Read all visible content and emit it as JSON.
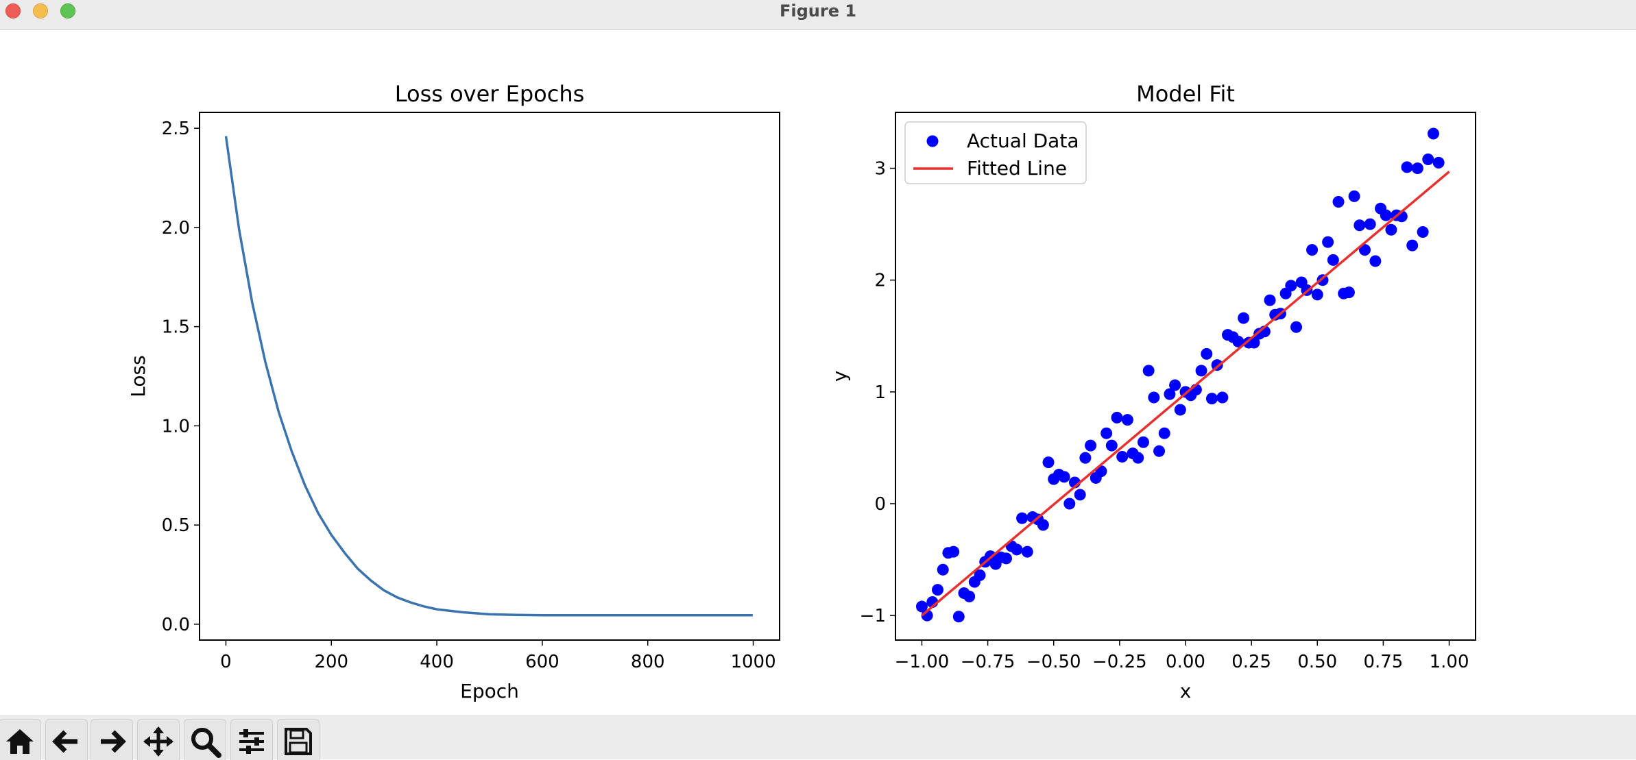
{
  "window": {
    "title": "Figure 1",
    "colors": {
      "close": "#ee5c56",
      "minimize": "#f4bd4f",
      "maximize": "#5fc454"
    }
  },
  "toolbar": {
    "buttons": [
      {
        "name": "home-button",
        "icon": "home-icon"
      },
      {
        "name": "back-button",
        "icon": "arrow-left-icon"
      },
      {
        "name": "forward-button",
        "icon": "arrow-right-icon"
      },
      {
        "name": "pan-button",
        "icon": "move-icon"
      },
      {
        "name": "zoom-button",
        "icon": "magnifier-icon"
      },
      {
        "name": "configure-subplots-button",
        "icon": "sliders-icon"
      },
      {
        "name": "save-button",
        "icon": "floppy-disk-icon"
      }
    ]
  },
  "chart_data": [
    {
      "type": "line",
      "title": "Loss over Epochs",
      "xlabel": "Epoch",
      "ylabel": "Loss",
      "xlim": [
        -50,
        1050
      ],
      "ylim": [
        -0.08,
        2.58
      ],
      "xticks": [
        0,
        200,
        400,
        600,
        800,
        1000
      ],
      "xticklabels": [
        "0",
        "200",
        "400",
        "600",
        "800",
        "1000"
      ],
      "yticks": [
        0.0,
        0.5,
        1.0,
        1.5,
        2.0,
        2.5
      ],
      "yticklabels": [
        "0.0",
        "0.5",
        "1.0",
        "1.5",
        "2.0",
        "2.5"
      ],
      "grid": false,
      "series": [
        {
          "color": "#3b73ae",
          "x": [
            0,
            25,
            50,
            75,
            100,
            125,
            150,
            175,
            200,
            225,
            250,
            275,
            300,
            325,
            350,
            375,
            400,
            450,
            500,
            550,
            600,
            700,
            800,
            900,
            999
          ],
          "y": [
            2.46,
            1.99,
            1.62,
            1.32,
            1.07,
            0.87,
            0.7,
            0.56,
            0.45,
            0.36,
            0.28,
            0.22,
            0.17,
            0.135,
            0.11,
            0.09,
            0.075,
            0.06,
            0.05,
            0.047,
            0.045,
            0.045,
            0.045,
            0.045,
            0.045
          ]
        }
      ]
    },
    {
      "type": "scatter",
      "title": "Model Fit",
      "xlabel": "x",
      "ylabel": "y",
      "xlim": [
        -1.1,
        1.1
      ],
      "ylim": [
        -1.22,
        3.5
      ],
      "xticks": [
        -1.0,
        -0.75,
        -0.5,
        -0.25,
        0.0,
        0.25,
        0.5,
        0.75,
        1.0
      ],
      "xticklabels": [
        "−1.00",
        "−0.75",
        "−0.50",
        "−0.25",
        "0.00",
        "0.25",
        "0.50",
        "0.75",
        "1.00"
      ],
      "yticks": [
        -1,
        0,
        1,
        2,
        3
      ],
      "yticklabels": [
        "−1",
        "0",
        "1",
        "2",
        "3"
      ],
      "grid": false,
      "legend": {
        "position": "top-left",
        "entries": [
          "Actual Data",
          "Fitted Line"
        ]
      },
      "series": [
        {
          "name": "Actual Data",
          "type": "scatter",
          "color": "#0000ff",
          "points": [
            [
              -1.0,
              -0.92
            ],
            [
              -0.98,
              -1.0
            ],
            [
              -0.96,
              -0.88
            ],
            [
              -0.94,
              -0.77
            ],
            [
              -0.92,
              -0.59
            ],
            [
              -0.9,
              -0.44
            ],
            [
              -0.88,
              -0.43
            ],
            [
              -0.86,
              -1.01
            ],
            [
              -0.84,
              -0.8
            ],
            [
              -0.82,
              -0.83
            ],
            [
              -0.8,
              -0.7
            ],
            [
              -0.78,
              -0.64
            ],
            [
              -0.76,
              -0.52
            ],
            [
              -0.74,
              -0.47
            ],
            [
              -0.72,
              -0.54
            ],
            [
              -0.7,
              -0.48
            ],
            [
              -0.68,
              -0.49
            ],
            [
              -0.66,
              -0.38
            ],
            [
              -0.64,
              -0.41
            ],
            [
              -0.62,
              -0.13
            ],
            [
              -0.6,
              -0.43
            ],
            [
              -0.58,
              -0.12
            ],
            [
              -0.56,
              -0.14
            ],
            [
              -0.54,
              -0.19
            ],
            [
              -0.52,
              0.37
            ],
            [
              -0.5,
              0.22
            ],
            [
              -0.48,
              0.26
            ],
            [
              -0.46,
              0.24
            ],
            [
              -0.44,
              0.0
            ],
            [
              -0.42,
              0.19
            ],
            [
              -0.4,
              0.08
            ],
            [
              -0.38,
              0.41
            ],
            [
              -0.36,
              0.52
            ],
            [
              -0.34,
              0.23
            ],
            [
              -0.32,
              0.29
            ],
            [
              -0.3,
              0.63
            ],
            [
              -0.28,
              0.52
            ],
            [
              -0.26,
              0.77
            ],
            [
              -0.24,
              0.42
            ],
            [
              -0.22,
              0.75
            ],
            [
              -0.2,
              0.45
            ],
            [
              -0.18,
              0.41
            ],
            [
              -0.16,
              0.55
            ],
            [
              -0.14,
              1.19
            ],
            [
              -0.12,
              0.95
            ],
            [
              -0.1,
              0.47
            ],
            [
              -0.08,
              0.63
            ],
            [
              -0.06,
              0.98
            ],
            [
              -0.04,
              1.06
            ],
            [
              -0.02,
              0.84
            ],
            [
              0.0,
              1.0
            ],
            [
              0.02,
              0.97
            ],
            [
              0.04,
              1.02
            ],
            [
              0.06,
              1.19
            ],
            [
              0.08,
              1.34
            ],
            [
              0.1,
              0.94
            ],
            [
              0.12,
              1.24
            ],
            [
              0.14,
              0.95
            ],
            [
              0.16,
              1.51
            ],
            [
              0.18,
              1.49
            ],
            [
              0.2,
              1.45
            ],
            [
              0.22,
              1.66
            ],
            [
              0.24,
              1.44
            ],
            [
              0.26,
              1.44
            ],
            [
              0.28,
              1.52
            ],
            [
              0.3,
              1.54
            ],
            [
              0.32,
              1.82
            ],
            [
              0.34,
              1.69
            ],
            [
              0.36,
              1.7
            ],
            [
              0.38,
              1.88
            ],
            [
              0.4,
              1.95
            ],
            [
              0.42,
              1.58
            ],
            [
              0.44,
              1.98
            ],
            [
              0.46,
              1.91
            ],
            [
              0.48,
              2.27
            ],
            [
              0.5,
              1.87
            ],
            [
              0.52,
              2.0
            ],
            [
              0.54,
              2.34
            ],
            [
              0.56,
              2.18
            ],
            [
              0.58,
              2.7
            ],
            [
              0.6,
              1.88
            ],
            [
              0.62,
              1.89
            ],
            [
              0.64,
              2.75
            ],
            [
              0.66,
              2.49
            ],
            [
              0.68,
              2.27
            ],
            [
              0.7,
              2.5
            ],
            [
              0.72,
              2.17
            ],
            [
              0.74,
              2.64
            ],
            [
              0.76,
              2.58
            ],
            [
              0.78,
              2.45
            ],
            [
              0.8,
              2.58
            ],
            [
              0.82,
              2.57
            ],
            [
              0.84,
              3.01
            ],
            [
              0.86,
              2.31
            ],
            [
              0.88,
              3.0
            ],
            [
              0.9,
              2.43
            ],
            [
              0.92,
              3.08
            ],
            [
              0.94,
              3.31
            ],
            [
              0.96,
              3.05
            ]
          ]
        },
        {
          "name": "Fitted Line",
          "type": "line",
          "color": "#e8302e",
          "x": [
            -1.0,
            1.0
          ],
          "y": [
            -1.0,
            2.97
          ]
        }
      ]
    }
  ]
}
